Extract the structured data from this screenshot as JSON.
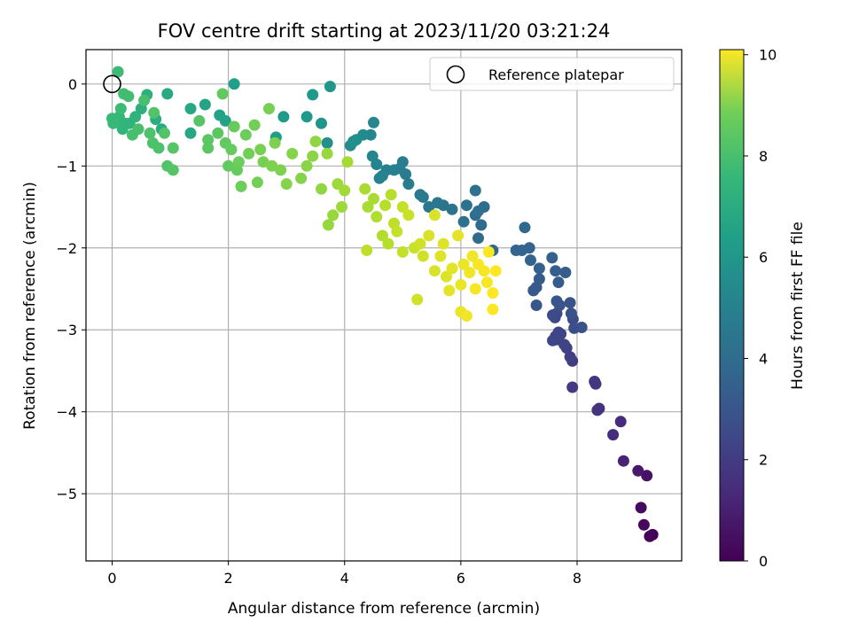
{
  "chart_data": {
    "type": "scatter",
    "title": "FOV centre drift starting at 2023/11/20 03:21:24",
    "xlabel": "Angular distance from reference (arcmin)",
    "ylabel": "Rotation from reference (arcmin)",
    "xlim": [
      -0.45,
      9.8
    ],
    "ylim": [
      -5.82,
      0.42
    ],
    "xticks": [
      0,
      2,
      4,
      6,
      8
    ],
    "yticks": [
      0,
      -1,
      -2,
      -3,
      -4,
      -5
    ],
    "grid": true,
    "legend": {
      "placement": "top-right",
      "entries": [
        "Reference platepar"
      ]
    },
    "reference_point": {
      "x": 0,
      "y": 0,
      "marker": "open-circle",
      "label": "Reference platepar"
    },
    "colorbar": {
      "label": "Hours from first FF file",
      "colormap": "viridis",
      "range": [
        0,
        10.1
      ],
      "ticks": [
        0,
        2,
        4,
        6,
        8,
        10
      ]
    },
    "points_columns": [
      "x",
      "y",
      "hours"
    ],
    "points": [
      [
        9.3,
        -5.5,
        0.0
      ],
      [
        9.25,
        -5.52,
        0.1
      ],
      [
        9.15,
        -5.38,
        0.2
      ],
      [
        9.1,
        -5.17,
        0.3
      ],
      [
        9.2,
        -4.78,
        0.5
      ],
      [
        9.05,
        -4.72,
        0.7
      ],
      [
        8.8,
        -4.6,
        1.0
      ],
      [
        8.75,
        -4.12,
        1.2
      ],
      [
        8.62,
        -4.28,
        1.3
      ],
      [
        8.38,
        -3.96,
        1.5
      ],
      [
        8.35,
        -3.98,
        1.5
      ],
      [
        8.32,
        -3.66,
        1.6
      ],
      [
        8.3,
        -3.63,
        1.6
      ],
      [
        7.92,
        -3.7,
        1.7
      ],
      [
        7.92,
        -3.38,
        1.8
      ],
      [
        7.88,
        -3.33,
        1.9
      ],
      [
        7.82,
        -3.22,
        1.9
      ],
      [
        7.78,
        -3.18,
        2.0
      ],
      [
        7.72,
        -3.05,
        2.0
      ],
      [
        7.63,
        -3.08,
        2.0
      ],
      [
        7.58,
        -3.13,
        2.1
      ],
      [
        7.65,
        -3.12,
        2.1
      ],
      [
        7.68,
        -3.03,
        2.1
      ],
      [
        7.62,
        -2.85,
        2.2
      ],
      [
        7.65,
        -2.8,
        2.2
      ],
      [
        7.58,
        -2.82,
        2.3
      ],
      [
        7.93,
        -2.87,
        2.3
      ],
      [
        7.95,
        -2.98,
        2.4
      ],
      [
        8.08,
        -2.97,
        2.5
      ],
      [
        7.9,
        -2.8,
        2.5
      ],
      [
        7.88,
        -2.67,
        2.6
      ],
      [
        7.7,
        -2.7,
        2.6
      ],
      [
        7.65,
        -2.65,
        2.7
      ],
      [
        7.3,
        -2.7,
        2.7
      ],
      [
        7.25,
        -2.52,
        2.8
      ],
      [
        7.3,
        -2.48,
        2.8
      ],
      [
        7.35,
        -2.38,
        2.9
      ],
      [
        7.68,
        -2.42,
        2.9
      ],
      [
        7.63,
        -2.28,
        3.0
      ],
      [
        7.8,
        -2.3,
        3.0
      ],
      [
        7.57,
        -2.12,
        3.1
      ],
      [
        7.35,
        -2.25,
        3.1
      ],
      [
        7.2,
        -2.15,
        3.2
      ],
      [
        7.18,
        -2.0,
        3.2
      ],
      [
        7.05,
        -2.03,
        3.3
      ],
      [
        6.95,
        -2.03,
        3.3
      ],
      [
        7.1,
        -1.75,
        3.4
      ],
      [
        6.55,
        -2.03,
        3.4
      ],
      [
        6.3,
        -1.88,
        3.5
      ],
      [
        6.35,
        -1.72,
        3.5
      ],
      [
        6.25,
        -1.6,
        3.6
      ],
      [
        6.4,
        -1.5,
        3.6
      ],
      [
        6.3,
        -1.55,
        3.7
      ],
      [
        6.25,
        -1.3,
        3.7
      ],
      [
        6.1,
        -1.48,
        3.8
      ],
      [
        6.05,
        -1.68,
        3.8
      ],
      [
        5.85,
        -1.53,
        3.9
      ],
      [
        5.7,
        -1.48,
        3.9
      ],
      [
        5.6,
        -1.45,
        4.0
      ],
      [
        5.45,
        -1.5,
        4.0
      ],
      [
        5.35,
        -1.38,
        4.1
      ],
      [
        5.3,
        -1.35,
        4.1
      ],
      [
        5.1,
        -1.22,
        4.2
      ],
      [
        5.05,
        -1.1,
        4.2
      ],
      [
        5.0,
        -0.95,
        4.3
      ],
      [
        4.95,
        -1.03,
        4.3
      ],
      [
        4.85,
        -1.05,
        4.4
      ],
      [
        4.72,
        -1.05,
        4.4
      ],
      [
        4.65,
        -1.12,
        4.5
      ],
      [
        4.6,
        -1.15,
        4.5
      ],
      [
        4.55,
        -0.98,
        4.6
      ],
      [
        4.48,
        -0.88,
        4.6
      ],
      [
        4.45,
        -0.62,
        4.7
      ],
      [
        4.5,
        -0.47,
        4.7
      ],
      [
        4.32,
        -0.62,
        4.8
      ],
      [
        4.2,
        -0.68,
        4.9
      ],
      [
        4.1,
        -0.75,
        4.9
      ],
      [
        4.15,
        -0.7,
        5.0
      ],
      [
        3.7,
        -0.72,
        5.1
      ],
      [
        3.6,
        -0.48,
        5.2
      ],
      [
        3.75,
        -0.03,
        5.3
      ],
      [
        3.45,
        -0.13,
        5.4
      ],
      [
        3.35,
        -0.4,
        5.4
      ],
      [
        2.95,
        -0.4,
        5.5
      ],
      [
        2.82,
        -0.65,
        5.6
      ],
      [
        2.1,
        0.0,
        5.7
      ],
      [
        1.95,
        -0.45,
        5.8
      ],
      [
        1.85,
        -0.38,
        5.8
      ],
      [
        1.6,
        -0.25,
        5.9
      ],
      [
        1.35,
        -0.3,
        6.0
      ],
      [
        1.35,
        -0.6,
        6.0
      ],
      [
        0.95,
        -0.12,
        6.1
      ],
      [
        0.85,
        -0.55,
        6.2
      ],
      [
        0.75,
        -0.43,
        6.3
      ],
      [
        0.6,
        -0.13,
        6.4
      ],
      [
        0.5,
        -0.3,
        6.4
      ],
      [
        0.4,
        -0.4,
        6.5
      ],
      [
        0.3,
        -0.48,
        6.5
      ],
      [
        0.22,
        -0.48,
        6.6
      ],
      [
        0.18,
        -0.55,
        6.6
      ],
      [
        0.12,
        -0.4,
        6.7
      ],
      [
        0.05,
        -0.45,
        6.7
      ],
      [
        0.0,
        -0.42,
        6.8
      ],
      [
        0.02,
        -0.48,
        6.8
      ],
      [
        0.1,
        0.15,
        6.9
      ],
      [
        0.15,
        -0.3,
        6.9
      ],
      [
        0.2,
        -0.12,
        7.0
      ],
      [
        0.28,
        -0.15,
        7.0
      ],
      [
        0.35,
        -0.62,
        7.1
      ],
      [
        0.45,
        -0.55,
        7.1
      ],
      [
        0.55,
        -0.2,
        7.1
      ],
      [
        0.65,
        -0.6,
        7.2
      ],
      [
        0.7,
        -0.72,
        7.2
      ],
      [
        0.8,
        -0.78,
        7.2
      ],
      [
        0.72,
        -0.35,
        7.3
      ],
      [
        0.9,
        -0.6,
        7.3
      ],
      [
        0.95,
        -1.0,
        7.3
      ],
      [
        1.05,
        -1.05,
        7.4
      ],
      [
        1.05,
        -0.78,
        7.4
      ],
      [
        1.5,
        -0.45,
        7.4
      ],
      [
        1.65,
        -0.68,
        7.5
      ],
      [
        1.65,
        -0.78,
        7.5
      ],
      [
        1.82,
        -0.6,
        7.5
      ],
      [
        1.9,
        -0.12,
        7.6
      ],
      [
        1.95,
        -0.72,
        7.6
      ],
      [
        2.0,
        -1.0,
        7.6
      ],
      [
        2.05,
        -0.8,
        7.7
      ],
      [
        2.1,
        -0.52,
        7.7
      ],
      [
        2.15,
        -1.05,
        7.7
      ],
      [
        2.18,
        -0.95,
        7.8
      ],
      [
        2.22,
        -1.25,
        7.8
      ],
      [
        2.3,
        -0.62,
        7.8
      ],
      [
        2.35,
        -0.85,
        7.9
      ],
      [
        2.45,
        -0.5,
        7.9
      ],
      [
        2.5,
        -1.2,
        7.9
      ],
      [
        2.55,
        -0.8,
        8.0
      ],
      [
        2.6,
        -0.95,
        8.0
      ],
      [
        2.7,
        -0.3,
        8.0
      ],
      [
        2.75,
        -1.0,
        8.1
      ],
      [
        2.8,
        -0.72,
        8.1
      ],
      [
        2.9,
        -1.05,
        8.1
      ],
      [
        3.0,
        -1.22,
        8.2
      ],
      [
        3.1,
        -0.85,
        8.2
      ],
      [
        3.25,
        -1.15,
        8.2
      ],
      [
        3.35,
        -1.0,
        8.3
      ],
      [
        3.45,
        -0.88,
        8.3
      ],
      [
        3.5,
        -0.7,
        8.4
      ],
      [
        3.6,
        -1.28,
        8.4
      ],
      [
        3.7,
        -0.85,
        8.5
      ],
      [
        3.72,
        -1.72,
        8.5
      ],
      [
        3.8,
        -1.6,
        8.5
      ],
      [
        3.88,
        -1.22,
        8.6
      ],
      [
        3.95,
        -1.5,
        8.6
      ],
      [
        4.0,
        -1.3,
        8.7
      ],
      [
        4.05,
        -0.95,
        8.7
      ],
      [
        4.35,
        -1.28,
        8.8
      ],
      [
        4.4,
        -1.5,
        8.8
      ],
      [
        4.5,
        -1.4,
        8.8
      ],
      [
        4.55,
        -1.62,
        8.9
      ],
      [
        4.65,
        -1.85,
        8.9
      ],
      [
        4.7,
        -1.48,
        9.0
      ],
      [
        4.75,
        -1.95,
        9.0
      ],
      [
        4.8,
        -1.35,
        9.0
      ],
      [
        4.85,
        -1.7,
        9.1
      ],
      [
        4.38,
        -2.03,
        9.1
      ],
      [
        4.9,
        -1.8,
        9.2
      ],
      [
        5.0,
        -1.5,
        9.2
      ],
      [
        5.0,
        -2.05,
        9.2
      ],
      [
        5.1,
        -1.6,
        9.3
      ],
      [
        5.2,
        -2.0,
        9.3
      ],
      [
        5.25,
        -2.63,
        9.4
      ],
      [
        5.3,
        -1.95,
        9.4
      ],
      [
        5.35,
        -2.1,
        9.4
      ],
      [
        5.45,
        -1.85,
        9.5
      ],
      [
        5.55,
        -2.28,
        9.5
      ],
      [
        5.55,
        -1.6,
        9.5
      ],
      [
        5.65,
        -2.1,
        9.6
      ],
      [
        5.7,
        -1.95,
        9.6
      ],
      [
        5.75,
        -2.35,
        9.6
      ],
      [
        5.8,
        -2.52,
        9.7
      ],
      [
        5.85,
        -2.25,
        9.7
      ],
      [
        5.95,
        -1.85,
        9.7
      ],
      [
        6.0,
        -2.45,
        9.8
      ],
      [
        6.05,
        -2.2,
        9.8
      ],
      [
        6.0,
        -2.78,
        9.8
      ],
      [
        6.1,
        -2.83,
        9.9
      ],
      [
        6.15,
        -2.3,
        9.9
      ],
      [
        6.2,
        -2.1,
        9.9
      ],
      [
        6.25,
        -2.5,
        10.0
      ],
      [
        6.3,
        -2.2,
        10.0
      ],
      [
        6.4,
        -2.28,
        10.0
      ],
      [
        6.45,
        -2.42,
        10.0
      ],
      [
        6.55,
        -2.55,
        10.1
      ],
      [
        6.6,
        -2.28,
        10.1
      ],
      [
        6.55,
        -2.75,
        10.1
      ],
      [
        6.48,
        -2.05,
        10.1
      ]
    ]
  }
}
